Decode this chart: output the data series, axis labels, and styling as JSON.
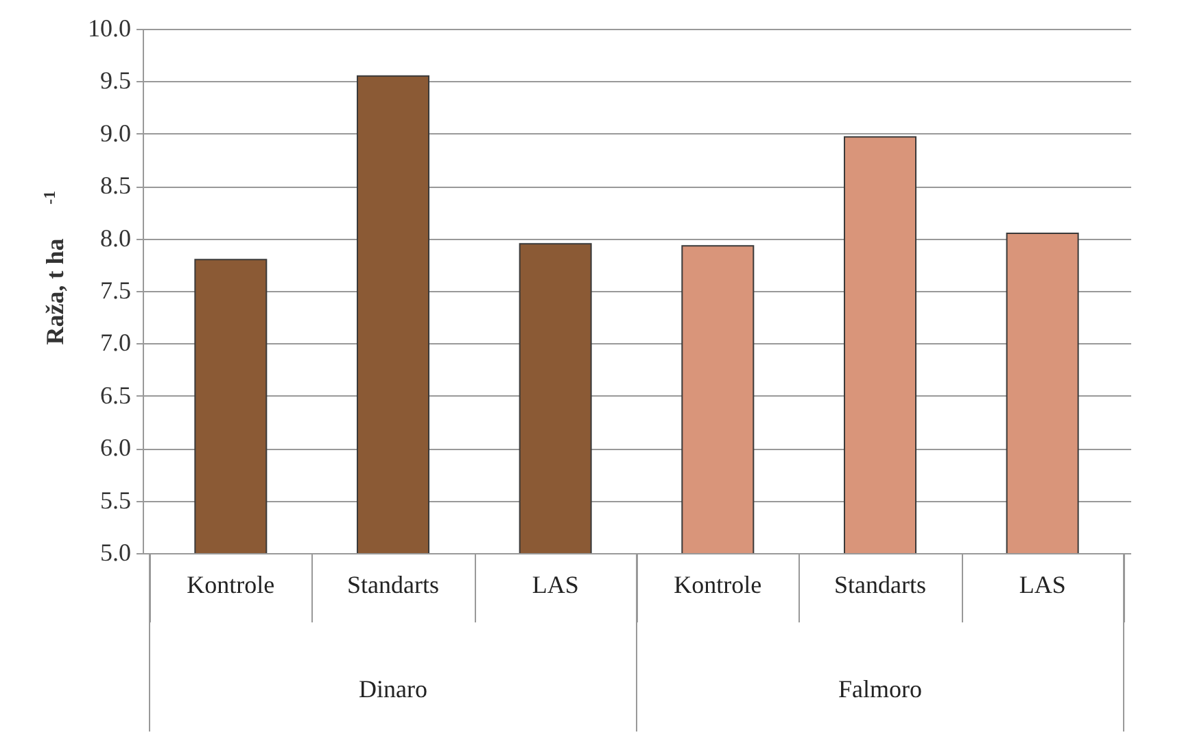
{
  "chart_data": {
    "type": "bar",
    "ylabel": "Raža, t ha$^{-1}$",
    "categories": [
      "Kontrole",
      "Standarts",
      "LAS",
      "Kontrole",
      "Standarts",
      "LAS"
    ],
    "values": [
      7.8,
      9.55,
      7.95,
      7.93,
      8.97,
      8.05
    ],
    "colors": [
      "#8b5a35",
      "#8b5a35",
      "#8b5a35",
      "#d9957a",
      "#d9957a",
      "#d9957a"
    ],
    "annotations": [
      "Dinaro",
      "Falmoro"
    ],
    "ylim": [
      5.0,
      10.0
    ],
    "yticks": [
      {
        "value": 5,
        "label": "5.0"
      },
      {
        "value": 5.5,
        "label": "5.5"
      },
      {
        "value": 6,
        "label": "6.0"
      },
      {
        "value": 6.5,
        "label": "6.5"
      },
      {
        "value": 7,
        "label": "7.0"
      },
      {
        "value": 7.5,
        "label": "7.5"
      },
      {
        "value": 8,
        "label": "8.0"
      },
      {
        "value": 8.5,
        "label": "8.5"
      },
      {
        "value": 9,
        "label": "9.0"
      },
      {
        "value": 9.5,
        "label": "9.5"
      },
      {
        "value": 10,
        "label": "10.0"
      }
    ],
    "grid": "y"
  }
}
